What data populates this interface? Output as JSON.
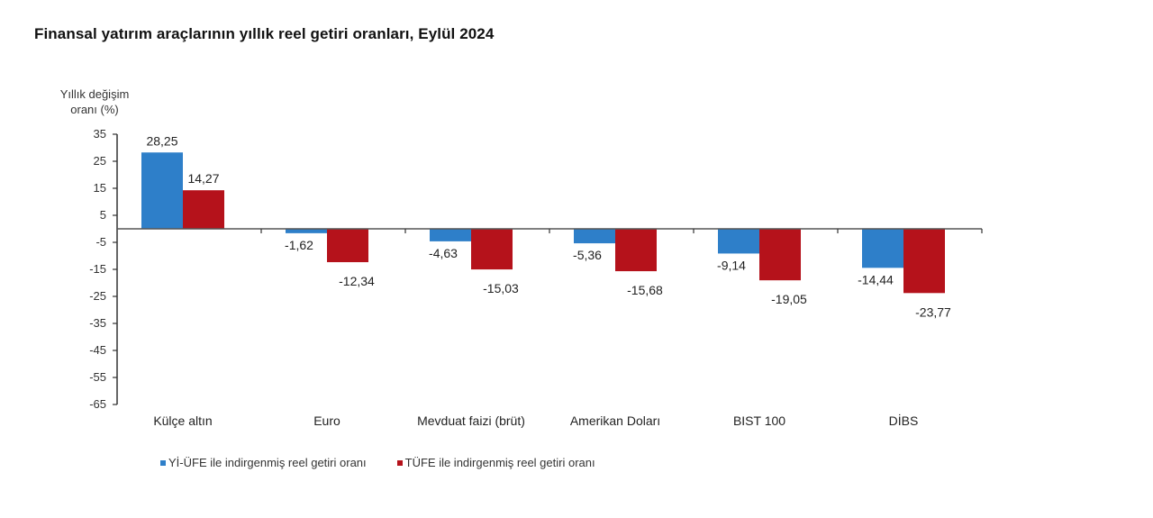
{
  "title": "Finansal yatırım araçlarının yıllık reel getiri oranları, Eylül 2024",
  "chart_data": {
    "type": "bar",
    "title": "Finansal yatırım araçlarının yıllık reel getiri oranları, Eylül 2024",
    "xlabel": "",
    "ylabel": "Yıllık değişim oranı (%)",
    "ylabel_lines": [
      "Yıllık değişim",
      "oranı (%)"
    ],
    "ylim": [
      -65,
      35
    ],
    "yticks": [
      35,
      25,
      15,
      5,
      -5,
      -15,
      -25,
      -35,
      -45,
      -55,
      -65
    ],
    "grid": false,
    "legend_position": "bottom",
    "categories": [
      "Külçe altın",
      "Euro",
      "Mevduat faizi (brüt)",
      "Amerikan Doları",
      "BIST 100",
      "DİBS"
    ],
    "series": [
      {
        "name": "Yİ-ÜFE ile indirgenmiş reel getiri oranı",
        "color": "#2e7fc9",
        "values": [
          28.25,
          -1.62,
          -4.63,
          -5.36,
          -9.14,
          -14.44
        ],
        "labels": [
          "28,25",
          "-1,62",
          "-4,63",
          "-5,36",
          "-9,14",
          "-14,44"
        ]
      },
      {
        "name": "TÜFE ile indirgenmiş reel getiri oranı",
        "color": "#b5121b",
        "values": [
          14.27,
          -12.34,
          -15.03,
          -15.68,
          -19.05,
          -23.77
        ],
        "labels": [
          "14,27",
          "-12,34",
          "-15,03",
          "-15,68",
          "-19,05",
          "-23,77"
        ]
      }
    ]
  }
}
